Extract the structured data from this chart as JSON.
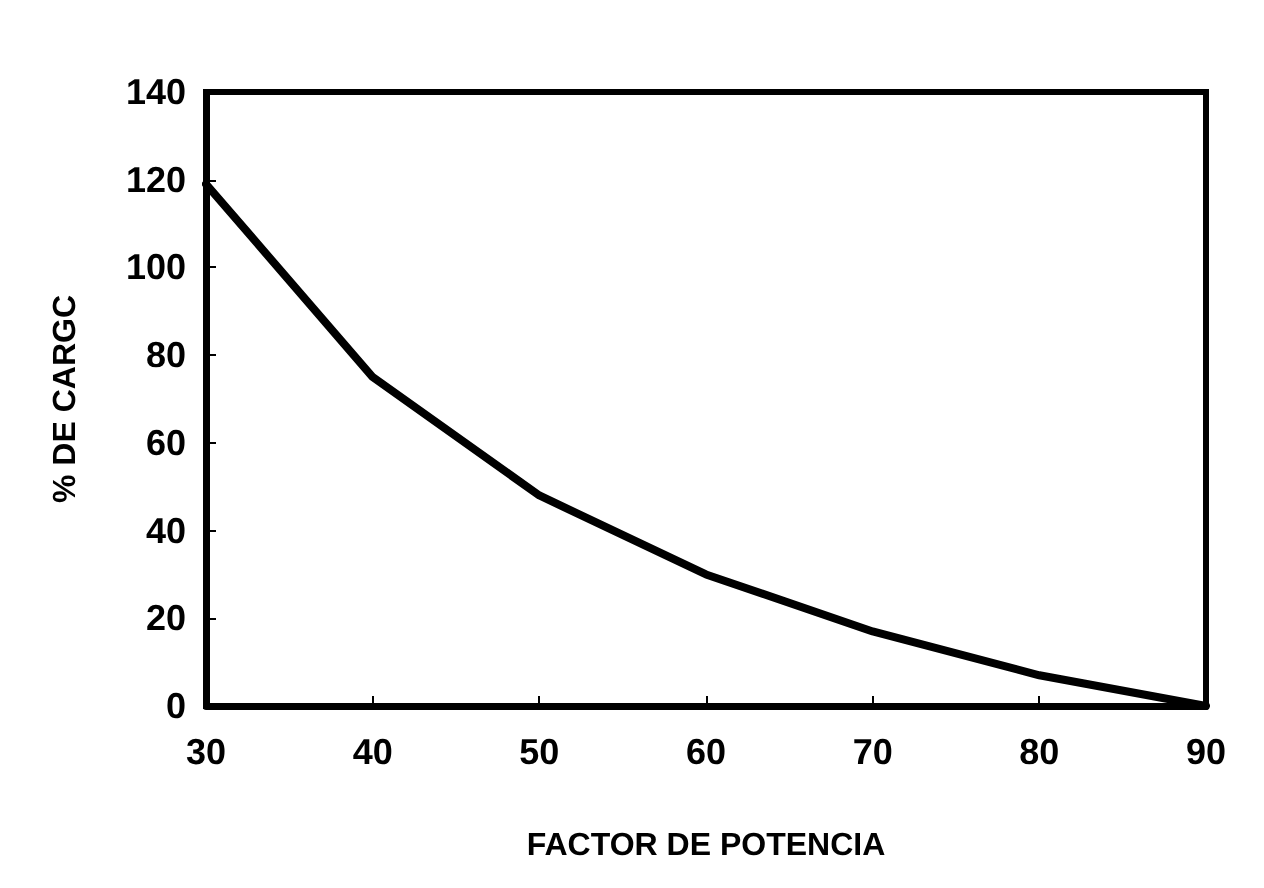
{
  "chart_data": {
    "type": "line",
    "xlabel": "FACTOR DE POTENCIA",
    "ylabel": "% DE CARGC",
    "x": [
      30,
      40,
      50,
      60,
      70,
      80,
      90
    ],
    "series": [
      {
        "color": "#000000",
        "values": [
          119,
          75,
          48,
          30,
          17,
          7,
          0
        ]
      }
    ],
    "xlim": [
      30,
      90
    ],
    "xticks": [
      30,
      40,
      50,
      60,
      70,
      80,
      90
    ],
    "ylim": [
      0,
      140
    ],
    "yticks": [
      0,
      20,
      40,
      60,
      80,
      100,
      120,
      140
    ],
    "grid": false,
    "marker": "none",
    "line_style": "solid"
  }
}
